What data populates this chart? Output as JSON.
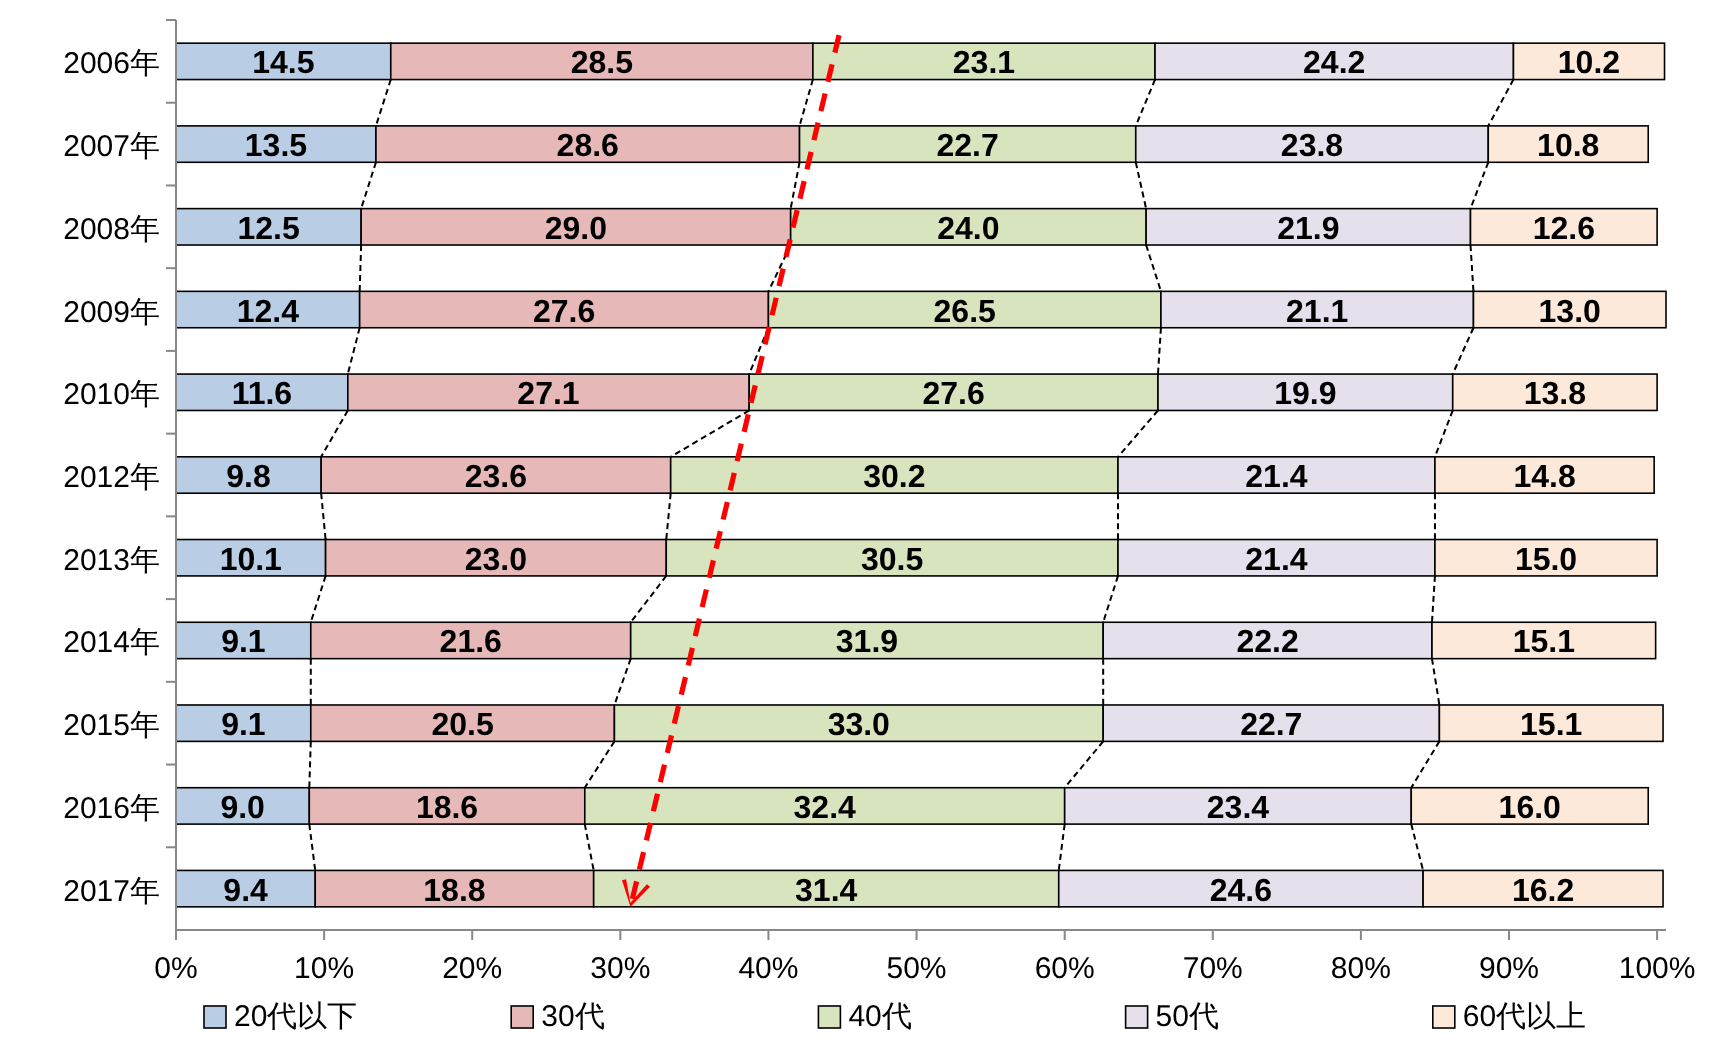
{
  "chart_data": {
    "type": "bar",
    "orientation": "horizontal",
    "stacked": true,
    "categories": [
      "2006年",
      "2007年",
      "2008年",
      "2009年",
      "2010年",
      "2012年",
      "2013年",
      "2014年",
      "2015年",
      "2016年",
      "2017年"
    ],
    "series": [
      {
        "name": "20代以下",
        "color": "#b9cde5",
        "values": [
          14.5,
          13.5,
          12.5,
          12.4,
          11.6,
          9.8,
          10.1,
          9.1,
          9.1,
          9.0,
          9.4
        ],
        "value_labels": [
          "14.5",
          "13.5",
          "12.5",
          "12.4",
          "11.6",
          "9.8",
          "10.1",
          "9.1",
          "9.1",
          "9.0",
          "9.4"
        ]
      },
      {
        "name": "30代",
        "color": "#e6b9b8",
        "values": [
          28.5,
          28.6,
          29.0,
          27.6,
          27.1,
          23.6,
          23.0,
          21.6,
          20.5,
          18.6,
          18.8
        ],
        "value_labels": [
          "28.5",
          "28.6",
          "29.0",
          "27.6",
          "27.1",
          "23.6",
          "23.0",
          "21.6",
          "20.5",
          "18.6",
          "18.8"
        ]
      },
      {
        "name": "40代",
        "color": "#d7e4bd",
        "values": [
          23.1,
          22.7,
          24.0,
          26.5,
          27.6,
          30.2,
          30.5,
          31.9,
          33.0,
          32.4,
          31.4
        ],
        "value_labels": [
          "23.1",
          "22.7",
          "24.0",
          "26.5",
          "27.6",
          "30.2",
          "30.5",
          "31.9",
          "33.0",
          "32.4",
          "31.4"
        ]
      },
      {
        "name": "50代",
        "color": "#e6e0ec",
        "values": [
          24.2,
          23.8,
          21.9,
          21.1,
          19.9,
          21.4,
          21.4,
          22.2,
          22.7,
          23.4,
          24.6
        ],
        "value_labels": [
          "24.2",
          "23.8",
          "21.9",
          "21.1",
          "19.9",
          "21.4",
          "21.4",
          "22.2",
          "22.7",
          "23.4",
          "24.6"
        ]
      },
      {
        "name": "60代以上",
        "color": "#fde9d9",
        "values": [
          10.2,
          10.8,
          12.6,
          13.0,
          13.8,
          14.8,
          15.0,
          15.1,
          15.1,
          16.0,
          16.2
        ],
        "value_labels": [
          "10.2",
          "10.8",
          "12.6",
          "13.0",
          "13.8",
          "14.8",
          "15.0",
          "15.1",
          "15.1",
          "16.0",
          "16.2"
        ]
      }
    ],
    "xlim": [
      0,
      100.6
    ],
    "xticks": [
      {
        "value": 0,
        "label": "0%"
      },
      {
        "value": 10,
        "label": "10%"
      },
      {
        "value": 20,
        "label": "20%"
      },
      {
        "value": 30,
        "label": "30%"
      },
      {
        "value": 40,
        "label": "40%"
      },
      {
        "value": 50,
        "label": "50%"
      },
      {
        "value": 60,
        "label": "60%"
      },
      {
        "value": 70,
        "label": "70%"
      },
      {
        "value": 80,
        "label": "80%"
      },
      {
        "value": 90,
        "label": "90%"
      },
      {
        "value": 100,
        "label": "100%"
      }
    ],
    "legend": "bottom",
    "grid": false
  }
}
